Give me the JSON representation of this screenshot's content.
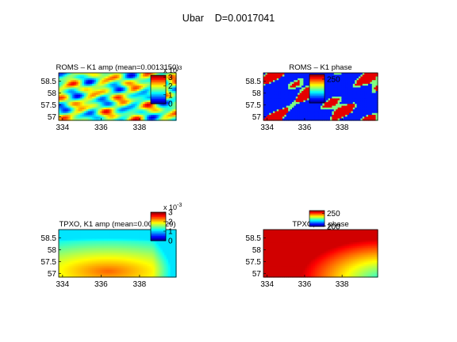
{
  "figure": {
    "suptitle": "Ubar    D=0.0017041",
    "colormap": "jet"
  },
  "chart_data": [
    {
      "type": "heatmap",
      "title": "ROMS – K1 amp (mean=0.0013150)",
      "xticks": [
        334,
        336,
        338
      ],
      "yticks": [
        57,
        57.5,
        58,
        58.5
      ],
      "xlim": [
        333.8,
        339.9
      ],
      "ylim": [
        56.85,
        58.85
      ],
      "field": "roms_amp",
      "colorbar": {
        "ticks": [
          "0",
          "1",
          "2",
          "3"
        ],
        "exponent_base": "x 10",
        "exponent_power": "-3",
        "range": [
          0,
          3.2
        ]
      }
    },
    {
      "type": "heatmap",
      "title": "ROMS – K1 phase",
      "xticks": [
        334,
        336,
        338
      ],
      "yticks": [
        57,
        57.5,
        58,
        58.5
      ],
      "xlim": [
        333.8,
        339.9
      ],
      "ylim": [
        56.85,
        58.85
      ],
      "field": "roms_phase",
      "colorbar": {
        "ticks": [
          "250"
        ],
        "range": [
          200,
          260
        ]
      }
    },
    {
      "type": "heatmap",
      "title": "TPXO, K1 amp (mean=0.0014629)",
      "xticks": [
        334,
        336,
        338
      ],
      "yticks": [
        57,
        57.5,
        58,
        58.5
      ],
      "xlim": [
        333.8,
        339.9
      ],
      "ylim": [
        56.85,
        58.85
      ],
      "field": "tpxo_amp",
      "colorbar": {
        "ticks": [
          "0",
          "1",
          "2",
          "3"
        ],
        "exponent_base": "x 10",
        "exponent_power": "-3",
        "range": [
          0,
          3
        ]
      }
    },
    {
      "type": "heatmap",
      "title": "TPXO, K1 phase",
      "xticks": [
        334,
        336,
        338
      ],
      "yticks": [
        57,
        57.5,
        58,
        58.5
      ],
      "xlim": [
        333.8,
        339.9
      ],
      "ylim": [
        56.85,
        58.85
      ],
      "field": "tpxo_phase",
      "colorbar": {
        "ticks": [
          "200",
          "250"
        ],
        "range": [
          200,
          260
        ]
      }
    }
  ]
}
